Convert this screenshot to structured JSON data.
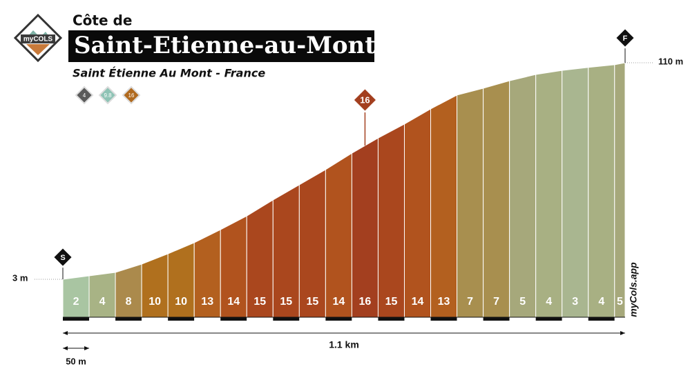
{
  "chart_data": {
    "type": "area",
    "title": "Côte de",
    "name": "Saint-Etienne-au-Mont",
    "subtitle": "Saint Étienne Au Mont - France",
    "badges": [
      {
        "label": "4",
        "color": "#5a5a5a"
      },
      {
        "label": "9.8",
        "color": "#8fc3b5"
      },
      {
        "label": "16",
        "color": "#b06a1f"
      }
    ],
    "logo": "myCOLS",
    "watermark": "myCols.app",
    "start_label": "S",
    "finish_label": "F",
    "distance_label": "1.1 km",
    "scale_label": "50 m",
    "x": [
      0,
      50,
      100,
      150,
      200,
      250,
      300,
      350,
      400,
      450,
      500,
      550,
      600,
      650,
      700,
      750,
      800,
      850,
      900,
      950,
      1000,
      1050,
      1070
    ],
    "values": [
      3,
      4.7,
      6.4,
      10.5,
      15.6,
      21.1,
      27.5,
      34.3,
      42.2,
      49.7,
      57.2,
      65.3,
      72.8,
      79.7,
      87.2,
      94.0,
      97.4,
      101.1,
      104.2,
      106.2,
      107.7,
      109.0,
      110
    ],
    "segments": {
      "grades": [
        2,
        4,
        8,
        10,
        10,
        13,
        14,
        15,
        15,
        15,
        14,
        16,
        15,
        14,
        13,
        7,
        7,
        5,
        4,
        3,
        4,
        5
      ],
      "colors": [
        "#a9c5a2",
        "#a8b385",
        "#ab8a4c",
        "#b0701e",
        "#b0701e",
        "#b3601f",
        "#b1531e",
        "#aa471e",
        "#aa471e",
        "#aa471e",
        "#b1531e",
        "#a33f1f",
        "#aa471e",
        "#b1531e",
        "#b3601f",
        "#a88f4f",
        "#a88f4f",
        "#a6a87b",
        "#a8b083",
        "#a9b690",
        "#a8b083",
        "#a6a87b"
      ]
    },
    "xlim": [
      0,
      1070
    ],
    "ylim": [
      3,
      110
    ],
    "yticks": [
      {
        "value": 3,
        "label": "3 m"
      },
      {
        "value": 110,
        "label": "110 m"
      }
    ]
  }
}
